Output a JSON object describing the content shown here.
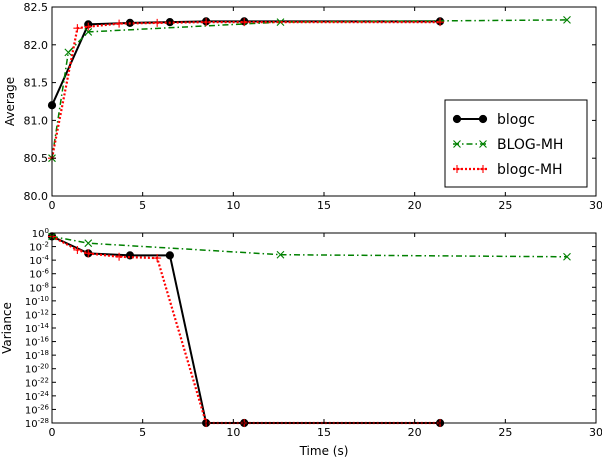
{
  "chart_data": [
    {
      "type": "line",
      "title": "",
      "xlabel": "",
      "ylabel": "Average",
      "xlim": [
        0,
        30
      ],
      "ylim": [
        80.0,
        82.5
      ],
      "x_ticks": [
        "0",
        "5",
        "10",
        "15",
        "20",
        "25",
        "30"
      ],
      "y_ticks": [
        "80.0",
        "80.5",
        "81.0",
        "81.5",
        "82.0",
        "82.5"
      ],
      "grid": false,
      "legend": "center-right",
      "series": [
        {
          "name": "blogc",
          "color": "#000000",
          "marker": "circle",
          "line": "solid",
          "x": [
            0,
            2.0,
            4.3,
            6.5,
            8.5,
            10.6,
            21.4
          ],
          "y": [
            81.2,
            82.27,
            82.29,
            82.3,
            82.31,
            82.31,
            82.31
          ]
        },
        {
          "name": "BLOG-MH",
          "color": "#008000",
          "marker": "x",
          "line": "dashdot",
          "x": [
            0,
            0.9,
            2.0,
            12.6,
            28.4
          ],
          "y": [
            80.5,
            81.9,
            82.17,
            82.3,
            82.33
          ]
        },
        {
          "name": "blogc-MH",
          "color": "#ff0000",
          "marker": "plus",
          "line": "dotted",
          "x": [
            0,
            1.4,
            2.0,
            3.7,
            5.8,
            8.5,
            10.6,
            21.4
          ],
          "y": [
            80.5,
            82.22,
            82.24,
            82.28,
            82.29,
            82.3,
            82.3,
            82.3
          ]
        }
      ]
    },
    {
      "type": "line",
      "title": "",
      "xlabel": "Time (s)",
      "ylabel": "Variance",
      "xlim": [
        0,
        30
      ],
      "yscale": "log",
      "ylim_exponent": [
        -28,
        0
      ],
      "x_ticks": [
        "0",
        "5",
        "10",
        "15",
        "20",
        "25",
        "30"
      ],
      "y_tick_exponents": [
        "0",
        "-2",
        "-4",
        "-6",
        "-8",
        "-10",
        "-12",
        "-14",
        "-16",
        "-18",
        "-20",
        "-22",
        "-24",
        "-26",
        "-28"
      ],
      "y_tick_base": "10",
      "grid": false,
      "series": [
        {
          "name": "blogc",
          "x": [
            0,
            2.0,
            4.3,
            6.5,
            8.5,
            10.6,
            21.4
          ],
          "y_exponent": [
            -0.5,
            -3.0,
            -3.3,
            -3.3,
            -28,
            -28,
            -28
          ]
        },
        {
          "name": "BLOG-MH",
          "x": [
            0,
            2.0,
            12.6,
            28.4
          ],
          "y_exponent": [
            -0.5,
            -1.5,
            -3.2,
            -3.5
          ]
        },
        {
          "name": "blogc-MH",
          "x": [
            0,
            1.4,
            2.0,
            3.7,
            5.8,
            8.5,
            10.6,
            21.4
          ],
          "y_exponent": [
            -0.5,
            -2.5,
            -3.0,
            -3.5,
            -3.7,
            -28,
            -28,
            -28
          ]
        }
      ]
    }
  ]
}
